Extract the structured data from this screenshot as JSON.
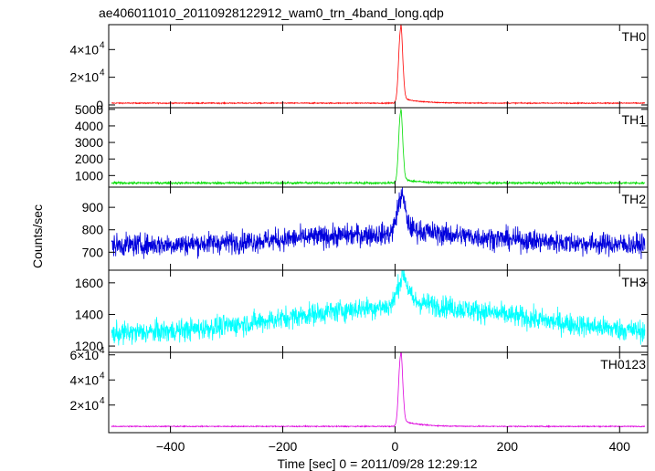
{
  "chart_data": {
    "type": "line",
    "title": "ae406011010_20110928122912_wam0_trn_4band_long.qdp",
    "xlabel": "Time [sec] 0 = 2011/09/28 12:29:12",
    "ylabel": "Counts/sec",
    "xlim": [
      -510,
      450
    ],
    "x_ticks": [
      {
        "value": -400,
        "label": "−400"
      },
      {
        "value": -200,
        "label": "−200"
      },
      {
        "value": 0,
        "label": "0"
      },
      {
        "value": 200,
        "label": "200"
      },
      {
        "value": 400,
        "label": "400"
      }
    ],
    "panels": [
      {
        "name": "TH0",
        "color": "#ff0000",
        "ylim": [
          -2000,
          58000
        ],
        "y_ticks": [
          {
            "value": 0,
            "label": "0",
            "sup": ""
          },
          {
            "value": 20000,
            "label": "2×10",
            "sup": "4"
          },
          {
            "value": 40000,
            "label": "4×10",
            "sup": "4"
          }
        ],
        "baseline": 1300,
        "noise": 250,
        "peak": {
          "t": 10,
          "height": 54000,
          "width": 5
        },
        "tail": {
          "amp": 4000,
          "tau": 30,
          "end_level": 0
        }
      },
      {
        "name": "TH1",
        "color": "#00dd00",
        "ylim": [
          300,
          5100
        ],
        "y_ticks": [
          {
            "value": 1000,
            "label": "1000",
            "sup": ""
          },
          {
            "value": 2000,
            "label": "2000",
            "sup": ""
          },
          {
            "value": 3000,
            "label": "3000",
            "sup": ""
          },
          {
            "value": 4000,
            "label": "4000",
            "sup": ""
          },
          {
            "value": 5000,
            "label": "5000",
            "sup": ""
          }
        ],
        "baseline": 550,
        "noise": 45,
        "peak": {
          "t": 10,
          "height": 4300,
          "width": 5
        },
        "tail": {
          "amp": 250,
          "tau": 30,
          "end_level": 0
        }
      },
      {
        "name": "TH2",
        "color": "#0000dd",
        "ylim": [
          620,
          990
        ],
        "y_ticks": [
          {
            "value": 700,
            "label": "700",
            "sup": ""
          },
          {
            "value": 800,
            "label": "800",
            "sup": ""
          },
          {
            "value": 900,
            "label": "900",
            "sup": ""
          }
        ],
        "baseline": 730,
        "hump": {
          "t": 0,
          "amp": 50,
          "width": 260
        },
        "noise": 35,
        "peak": {
          "t": 10,
          "height": 150,
          "width": 10
        },
        "tail": {
          "amp": 40,
          "tau": 40,
          "end_level": 0
        }
      },
      {
        "name": "TH3",
        "color": "#00ffff",
        "ylim": [
          1160,
          1680
        ],
        "y_ticks": [
          {
            "value": 1200,
            "label": "1200",
            "sup": ""
          },
          {
            "value": 1400,
            "label": "1400",
            "sup": ""
          },
          {
            "value": 1600,
            "label": "1600",
            "sup": ""
          }
        ],
        "baseline": 1270,
        "hump": {
          "t": 20,
          "amp": 180,
          "width": 300
        },
        "noise": 50,
        "peak": {
          "t": 12,
          "height": 170,
          "width": 12
        },
        "tail": {
          "amp": 60,
          "tau": 40,
          "end_level": 0
        }
      },
      {
        "name": "TH0123",
        "color": "#dd00dd",
        "ylim": [
          -2000,
          62000
        ],
        "y_ticks": [
          {
            "value": 20000,
            "label": "2×10",
            "sup": "4"
          },
          {
            "value": 40000,
            "label": "4×10",
            "sup": "4"
          },
          {
            "value": 60000,
            "label": "6×10",
            "sup": "4"
          }
        ],
        "baseline": 3000,
        "noise": 280,
        "peak": {
          "t": 10,
          "height": 57000,
          "width": 5
        },
        "tail": {
          "amp": 5000,
          "tau": 30,
          "end_level": 0
        }
      }
    ],
    "grid": false,
    "legend": "none"
  }
}
